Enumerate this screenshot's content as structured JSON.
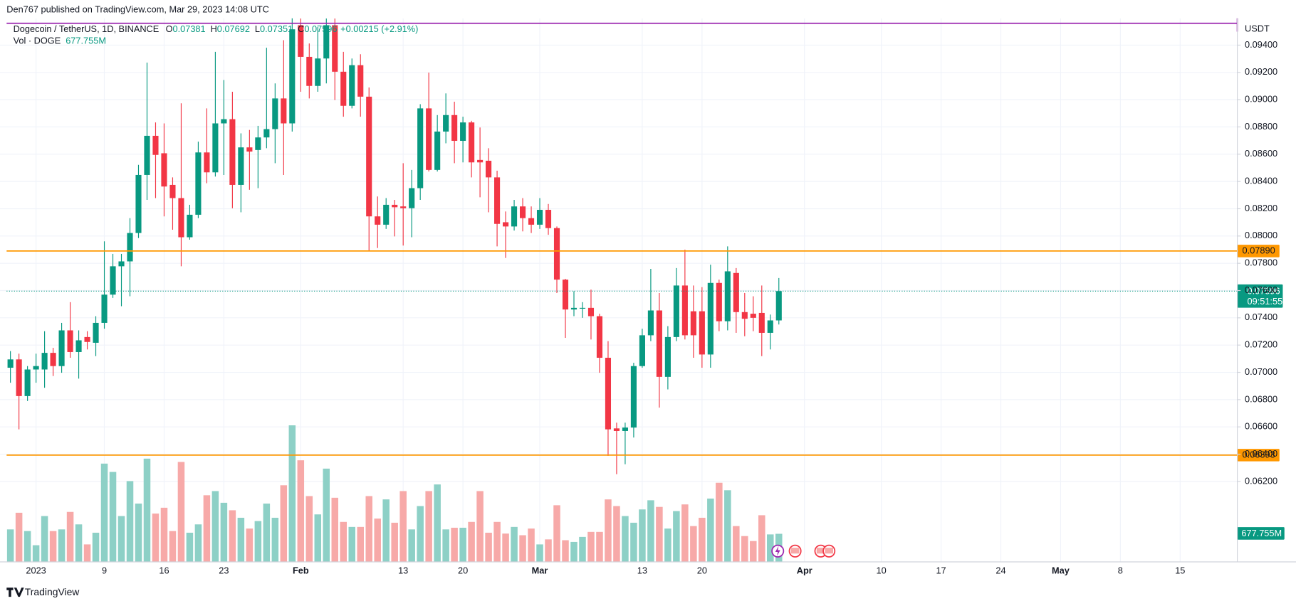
{
  "chart_data": {
    "type": "candlestick",
    "header": "Den767 published on TradingView.com, Mar 29, 2023 14:08 UTC",
    "footer": "TradingView",
    "legend": {
      "symbol": "Dogecoin / TetherUS, 1D, BINANCE",
      "ohlc_labels": [
        "O",
        "H",
        "L",
        "C"
      ],
      "change": "+0.00215 (+2.91%)",
      "volume_title": "Vol · DOGE"
    },
    "currency": "USDT",
    "last_price_label": "0.07596",
    "countdown": "09:51:55",
    "last_volume_label": "677.755M",
    "up_color": "#089981",
    "down_color": "#f23645",
    "volume_up_color": "#8dd0c6",
    "volume_down_color": "#f7a9a8",
    "x": [
      "2022-12-29",
      "2022-12-30",
      "2022-12-31",
      "2023-01-01",
      "2023-01-02",
      "2023-01-03",
      "2023-01-04",
      "2023-01-05",
      "2023-01-06",
      "2023-01-07",
      "2023-01-08",
      "2023-01-09",
      "2023-01-10",
      "2023-01-11",
      "2023-01-12",
      "2023-01-13",
      "2023-01-14",
      "2023-01-15",
      "2023-01-16",
      "2023-01-17",
      "2023-01-18",
      "2023-01-19",
      "2023-01-20",
      "2023-01-21",
      "2023-01-22",
      "2023-01-23",
      "2023-01-24",
      "2023-01-25",
      "2023-01-26",
      "2023-01-27",
      "2023-01-28",
      "2023-01-29",
      "2023-01-30",
      "2023-01-31",
      "2023-02-01",
      "2023-02-02",
      "2023-02-03",
      "2023-02-04",
      "2023-02-05",
      "2023-02-06",
      "2023-02-07",
      "2023-02-08",
      "2023-02-09",
      "2023-02-10",
      "2023-02-11",
      "2023-02-12",
      "2023-02-13",
      "2023-02-14",
      "2023-02-15",
      "2023-02-16",
      "2023-02-17",
      "2023-02-18",
      "2023-02-19",
      "2023-02-20",
      "2023-02-21",
      "2023-02-22",
      "2023-02-23",
      "2023-02-24",
      "2023-02-25",
      "2023-02-26",
      "2023-02-27",
      "2023-02-28",
      "2023-03-01",
      "2023-03-02",
      "2023-03-03",
      "2023-03-04",
      "2023-03-05",
      "2023-03-06",
      "2023-03-07",
      "2023-03-08",
      "2023-03-09",
      "2023-03-10",
      "2023-03-11",
      "2023-03-12",
      "2023-03-13",
      "2023-03-14",
      "2023-03-15",
      "2023-03-16",
      "2023-03-17",
      "2023-03-18",
      "2023-03-19",
      "2023-03-20",
      "2023-03-21",
      "2023-03-22",
      "2023-03-23",
      "2023-03-24",
      "2023-03-25",
      "2023-03-26",
      "2023-03-27",
      "2023-03-28",
      "2023-03-29"
    ],
    "open": [
      0.07034,
      0.07095,
      0.06826,
      0.07021,
      0.07021,
      0.07143,
      0.07046,
      0.07308,
      0.07149,
      0.07259,
      0.07217,
      0.07363,
      0.0757,
      0.07778,
      0.07814,
      0.08022,
      0.08448,
      0.08735,
      0.08607,
      0.08375,
      0.08278,
      0.07991,
      0.08156,
      0.08613,
      0.08467,
      0.08826,
      0.08857,
      0.08375,
      0.0865,
      0.08631,
      0.08723,
      0.08784,
      0.09009,
      0.08826,
      0.09546,
      0.09314,
      0.09101,
      0.09302,
      0.09546,
      0.09205,
      0.08955,
      0.09253,
      0.09022,
      0.08144,
      0.08083,
      0.08229,
      0.08217,
      0.08204,
      0.08351,
      0.08936,
      0.08485,
      0.08766,
      0.08887,
      0.08698,
      0.08833,
      0.08558,
      0.08552,
      0.0843,
      0.08101,
      0.0807,
      0.08217,
      0.08131,
      0.08083,
      0.08192,
      0.08058,
      0.0768,
      0.07461,
      0.07467,
      0.07473,
      0.07412,
      0.07107,
      0.06589,
      0.0657,
      0.06595,
      0.07046,
      0.07272,
      0.07454,
      0.06967,
      0.07259,
      0.07637,
      0.07448,
      0.07448,
      0.07131,
      0.07656,
      0.07375,
      0.07729,
      0.07442,
      0.0743,
      0.07436,
      0.0729,
      0.07381
    ],
    "high": [
      0.07156,
      0.07137,
      0.07046,
      0.07137,
      0.07302,
      0.0718,
      0.07363,
      0.07515,
      0.07308,
      0.07302,
      0.07412,
      0.07961,
      0.07869,
      0.07869,
      0.08131,
      0.08522,
      0.09272,
      0.08833,
      0.08826,
      0.0843,
      0.08973,
      0.08229,
      0.08692,
      0.08936,
      0.09351,
      0.09144,
      0.09058,
      0.08753,
      0.08778,
      0.08808,
      0.09381,
      0.09119,
      0.09436,
      0.09607,
      0.09595,
      0.09412,
      0.09534,
      0.09595,
      0.09595,
      0.09351,
      0.09302,
      0.09333,
      0.09089,
      0.0829,
      0.08278,
      0.08265,
      0.08534,
      0.08485,
      0.08967,
      0.09198,
      0.08887,
      0.09046,
      0.08985,
      0.08875,
      0.08845,
      0.08796,
      0.08644,
      0.08479,
      0.0818,
      0.08265,
      0.08278,
      0.08217,
      0.08278,
      0.08235,
      0.0807,
      0.07686,
      0.07595,
      0.07515,
      0.07607,
      0.0743,
      0.07229,
      0.06631,
      0.06631,
      0.0707,
      0.0732,
      0.07759,
      0.07582,
      0.07339,
      0.07765,
      0.079,
      0.07637,
      0.07625,
      0.0779,
      0.0768,
      0.07924,
      0.07765,
      0.07582,
      0.07558,
      0.07637,
      0.07424,
      0.07692
    ],
    "low": [
      0.06924,
      0.06582,
      0.0679,
      0.06924,
      0.06887,
      0.06973,
      0.06997,
      0.07107,
      0.06954,
      0.07168,
      0.07119,
      0.0732,
      0.07546,
      0.07485,
      0.07558,
      0.07985,
      0.08265,
      0.08278,
      0.08144,
      0.08046,
      0.07778,
      0.07973,
      0.08131,
      0.08387,
      0.08436,
      0.08448,
      0.08204,
      0.08174,
      0.08339,
      0.08351,
      0.08644,
      0.08534,
      0.08448,
      0.08766,
      0.09058,
      0.09009,
      0.09058,
      0.09119,
      0.08997,
      0.08875,
      0.08936,
      0.08875,
      0.07887,
      0.07912,
      0.08052,
      0.07997,
      0.0793,
      0.07991,
      0.08265,
      0.08473,
      0.08473,
      0.0868,
      0.08534,
      0.0854,
      0.0843,
      0.08284,
      0.08174,
      0.07924,
      0.07839,
      0.0804,
      0.08034,
      0.08022,
      0.08052,
      0.08009,
      0.07582,
      0.07253,
      0.07412,
      0.074,
      0.07241,
      0.06997,
      0.06387,
      0.06253,
      0.06326,
      0.06522,
      0.07034,
      0.07229,
      0.06741,
      0.06875,
      0.07229,
      0.07241,
      0.07107,
      0.07034,
      0.07034,
      0.07302,
      0.07308,
      0.0729,
      0.07265,
      0.07302,
      0.07119,
      0.07168,
      0.07351
    ],
    "close": [
      0.07095,
      0.06826,
      0.07021,
      0.07046,
      0.07143,
      0.07046,
      0.07308,
      0.07149,
      0.07235,
      0.07223,
      0.07363,
      0.0757,
      0.07778,
      0.07814,
      0.08022,
      0.08448,
      0.08735,
      0.08595,
      0.08363,
      0.08278,
      0.07991,
      0.08156,
      0.08613,
      0.08467,
      0.08826,
      0.08857,
      0.08375,
      0.0865,
      0.08619,
      0.08723,
      0.08784,
      0.09009,
      0.08826,
      0.09516,
      0.09314,
      0.09101,
      0.09302,
      0.09546,
      0.09205,
      0.08955,
      0.09253,
      0.09022,
      0.08144,
      0.08083,
      0.08229,
      0.08211,
      0.08204,
      0.08351,
      0.08936,
      0.08485,
      0.08766,
      0.08887,
      0.08698,
      0.08833,
      0.0854,
      0.0854,
      0.0843,
      0.08089,
      0.0807,
      0.08217,
      0.08131,
      0.08083,
      0.08192,
      0.08058,
      0.0768,
      0.07461,
      0.07473,
      0.07473,
      0.07412,
      0.07107,
      0.06582,
      0.0657,
      0.06595,
      0.07046,
      0.07272,
      0.07454,
      0.06967,
      0.07259,
      0.07637,
      0.07272,
      0.07272,
      0.07131,
      0.07656,
      0.07375,
      0.07741,
      0.07442,
      0.07393,
      0.074,
      0.0729,
      0.07381,
      0.07596
    ],
    "volume": [
      784,
      1186,
      744,
      402,
      1106,
      744,
      784,
      1206,
      905,
      422,
      704,
      2372,
      2171,
      1106,
      1950,
      1407,
      2492,
      1166,
      1307,
      744,
      2412,
      704,
      905,
      1608,
      1709,
      1427,
      1246,
      1065,
      804,
      985,
      1407,
      1065,
      1849,
      3296,
      2452,
      1588,
      1146,
      2251,
      1548,
      965,
      844,
      844,
      1588,
      1045,
      1508,
      945,
      1709,
      784,
      1347,
      1709,
      1869,
      784,
      824,
      824,
      965,
      1709,
      704,
      965,
      683,
      844,
      643,
      804,
      422,
      543,
      1367,
      523,
      482,
      603,
      724,
      724,
      1508,
      1347,
      1106,
      945,
      1266,
      1487,
      1327,
      804,
      1226,
      1387,
      864,
      1065,
      1528,
      1910,
      1729,
      864,
      623,
      503,
      1126,
      663,
      677.755
    ],
    "volume_lim": [
      0,
      13000
    ],
    "ylim": [
      0.0561,
      0.0956
    ],
    "yticks": [
      {
        "value": 0.062,
        "label": "0.06200"
      },
      {
        "value": 0.064,
        "label": "0.06400"
      },
      {
        "value": 0.066,
        "label": "0.06600"
      },
      {
        "value": 0.068,
        "label": "0.06800"
      },
      {
        "value": 0.07,
        "label": "0.07000"
      },
      {
        "value": 0.072,
        "label": "0.07200"
      },
      {
        "value": 0.074,
        "label": "0.07400"
      },
      {
        "value": 0.076,
        "label": "0.07600"
      },
      {
        "value": 0.078,
        "label": "0.07800"
      },
      {
        "value": 0.08,
        "label": "0.08000"
      },
      {
        "value": 0.082,
        "label": "0.08200"
      },
      {
        "value": 0.084,
        "label": "0.08400"
      },
      {
        "value": 0.086,
        "label": "0.08600"
      },
      {
        "value": 0.088,
        "label": "0.08800"
      },
      {
        "value": 0.09,
        "label": "0.09000"
      },
      {
        "value": 0.092,
        "label": "0.09200"
      },
      {
        "value": 0.094,
        "label": "0.09400"
      }
    ],
    "xlim": [
      "2022-12-28",
      "2023-05-24"
    ],
    "xticks": [
      {
        "value": "2023-01-01",
        "label": "2023"
      },
      {
        "value": "2023-01-09",
        "label": "9"
      },
      {
        "value": "2023-01-16",
        "label": "16"
      },
      {
        "value": "2023-01-23",
        "label": "23"
      },
      {
        "value": "2023-02-01",
        "label": "Feb"
      },
      {
        "value": "2023-02-13",
        "label": "13"
      },
      {
        "value": "2023-02-20",
        "label": "20"
      },
      {
        "value": "2023-03-01",
        "label": "Mar"
      },
      {
        "value": "2023-03-13",
        "label": "13"
      },
      {
        "value": "2023-03-20",
        "label": "20"
      },
      {
        "value": "2023-04-01",
        "label": "Apr"
      },
      {
        "value": "2023-04-10",
        "label": "10"
      },
      {
        "value": "2023-04-17",
        "label": "17"
      },
      {
        "value": "2023-04-24",
        "label": "24"
      },
      {
        "value": "2023-05-01",
        "label": "May"
      },
      {
        "value": "2023-05-08",
        "label": "8"
      },
      {
        "value": "2023-05-15",
        "label": "15"
      }
    ],
    "grid": true,
    "levels": [
      {
        "value": 0.0789,
        "label": "0.07890",
        "color": "#ff9800"
      },
      {
        "value": 0.06393,
        "label": "0.06393",
        "color": "#ff9800"
      }
    ]
  }
}
